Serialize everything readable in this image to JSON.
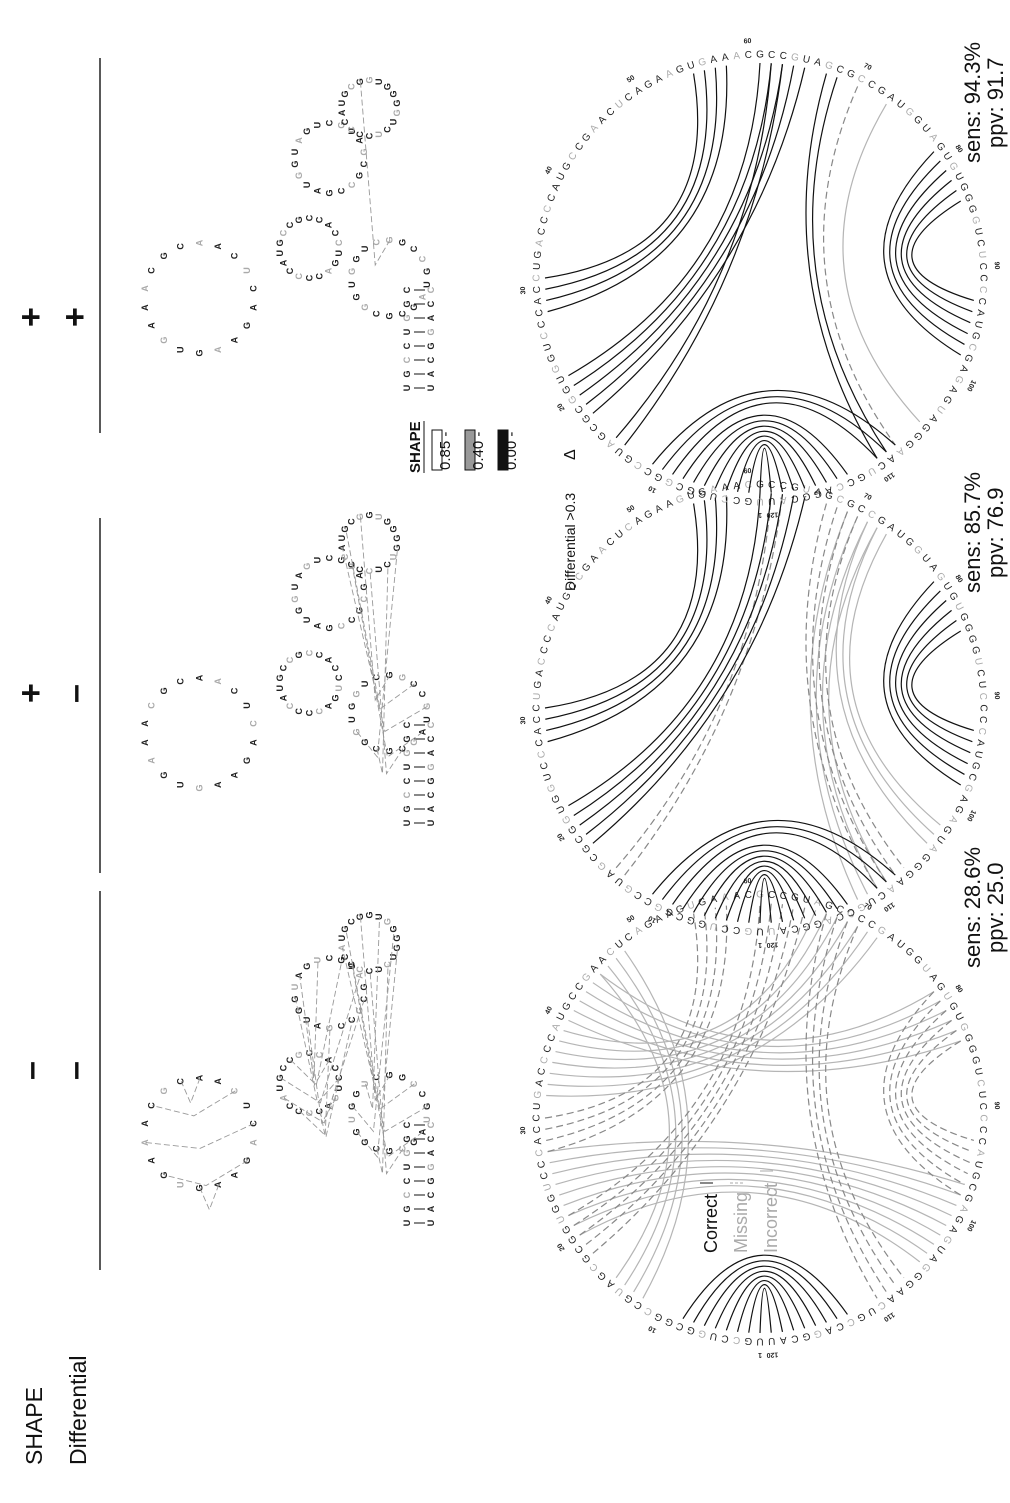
{
  "header": {
    "shape_label": "SHAPE",
    "differential_label": "Differential",
    "conditions": [
      {
        "shape": "–",
        "differential": "–"
      },
      {
        "shape": "+",
        "differential": "–"
      },
      {
        "shape": "+",
        "differential": "+"
      }
    ]
  },
  "legend": {
    "title": "SHAPE",
    "thresholds": [
      "0.85 -",
      "0.40 -",
      "0.00 -"
    ],
    "colors": [
      "#ffffff",
      "#999999",
      "#111111"
    ],
    "differential_label": "Differential >0.3",
    "differential_symbol": "Δ"
  },
  "arc_key": {
    "correct": "Correct",
    "missing": "Missing",
    "incorrect": "Incorrect"
  },
  "metrics": [
    {
      "sens": "sens: 28.6%",
      "ppv": "ppv: 25.0"
    },
    {
      "sens": "sens: 85.7%",
      "ppv": "ppv: 76.9"
    },
    {
      "sens": "sens: 94.3%",
      "ppv": "ppv: 91.7"
    }
  ],
  "rna": {
    "length": 120,
    "sequence": "UGCCUGGCGGCCGUAGCGCGGUGGUCCCACCUGACCCCAUGCCGAACUCAGAAGUGAAACGCCGUAGCGCCGAUGGUAGUGUGGGGUCUCCCCAUGCGAGAGUAGGGAACUGCCAGGCAU",
    "tick_numbers": [
      "1",
      "10",
      "20",
      "30",
      "40",
      "50",
      "60",
      "70",
      "80",
      "90",
      "100",
      "110",
      "120"
    ]
  },
  "panels": [
    {
      "condition_index": 0,
      "correct_helices": [
        [
          1,
          120,
          8
        ]
      ],
      "missing_helices": [
        [
          18,
          65,
          5
        ],
        [
          79,
          98,
          6
        ],
        [
          28,
          58,
          4
        ],
        [
          67,
          110,
          4
        ]
      ],
      "incorrect_helices": [
        [
          20,
          105,
          9
        ],
        [
          33,
          72,
          7
        ],
        [
          40,
          84,
          6
        ],
        [
          12,
          48,
          4
        ]
      ]
    },
    {
      "condition_index": 1,
      "correct_helices": [
        [
          1,
          120,
          8
        ],
        [
          18,
          65,
          5
        ],
        [
          79,
          98,
          6
        ],
        [
          28,
          58,
          4
        ],
        [
          9,
          110,
          3
        ]
      ],
      "missing_helices": [
        [
          67,
          110,
          4
        ],
        [
          14,
          63,
          2
        ]
      ],
      "incorrect_helices": [
        [
          69,
          112,
          4
        ],
        [
          71,
          104,
          3
        ]
      ]
    },
    {
      "condition_index": 2,
      "correct_helices": [
        [
          1,
          120,
          8
        ],
        [
          18,
          65,
          5
        ],
        [
          79,
          98,
          6
        ],
        [
          28,
          58,
          4
        ],
        [
          9,
          110,
          3
        ],
        [
          67,
          110,
          2
        ],
        [
          14,
          63,
          2
        ]
      ],
      "missing_helices": [
        [
          70,
          108,
          1
        ]
      ],
      "incorrect_helices": [
        [
          73,
          105,
          1
        ]
      ]
    }
  ]
}
